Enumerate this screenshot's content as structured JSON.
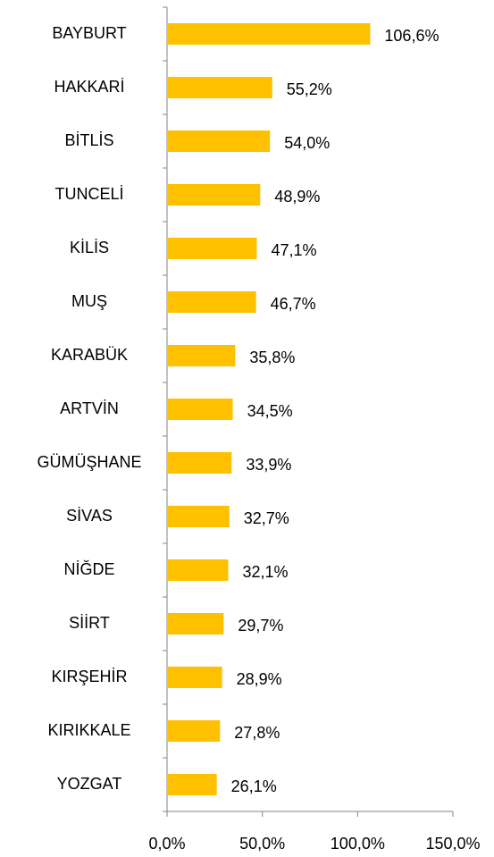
{
  "chart_data": {
    "type": "bar",
    "orientation": "horizontal",
    "categories": [
      "BAYBURT",
      "HAKKARİ",
      "BİTLİS",
      "TUNCELİ",
      "KİLİS",
      "MUŞ",
      "KARABÜK",
      "ARTVİN",
      "GÜMÜŞHANE",
      "SİVAS",
      "NİĞDE",
      "SİİRT",
      "KIRŞEHİR",
      "KIRIKKALE",
      "YOZGAT"
    ],
    "values": [
      106.6,
      55.2,
      54.0,
      48.9,
      47.1,
      46.7,
      35.8,
      34.5,
      33.9,
      32.7,
      32.1,
      29.7,
      28.9,
      27.8,
      26.1
    ],
    "value_labels": [
      "106,6%",
      "55,2%",
      "54,0%",
      "48,9%",
      "47,1%",
      "46,7%",
      "35,8%",
      "34,5%",
      "33,9%",
      "32,7%",
      "32,1%",
      "29,7%",
      "28,9%",
      "27,8%",
      "26,1%"
    ],
    "color": "#ffc000",
    "xlim": [
      0,
      150
    ],
    "xticks": [
      {
        "value": 0,
        "label": "0,0%"
      },
      {
        "value": 50,
        "label": "50,0%"
      },
      {
        "value": 100,
        "label": "100,0%"
      },
      {
        "value": 150,
        "label": "150,0%"
      }
    ],
    "grid": false
  }
}
